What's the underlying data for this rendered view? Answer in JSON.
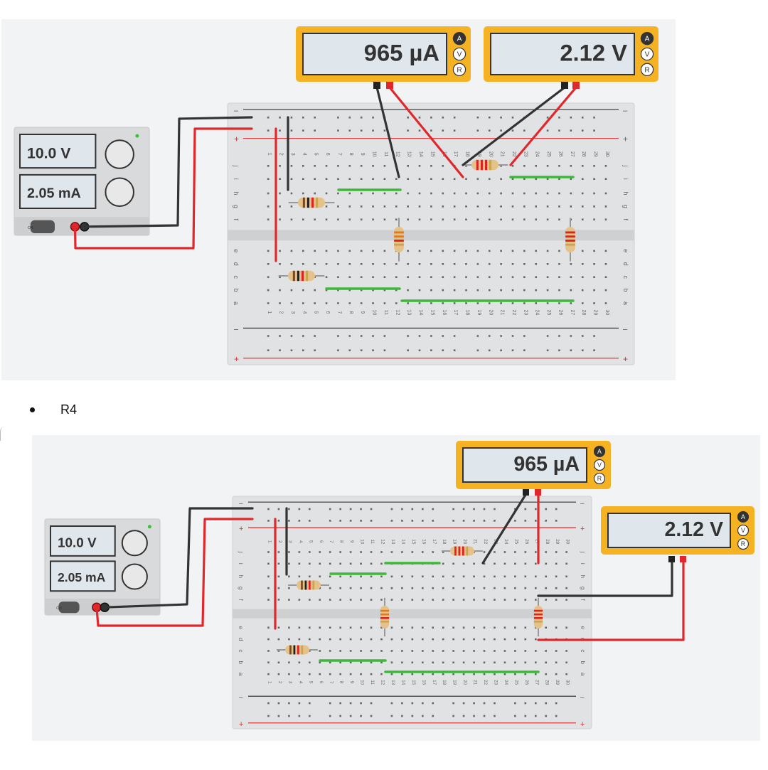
{
  "colors": {
    "meter_frame": "#f5b323",
    "meter_screen": "#dfe6ec",
    "supply_body": "#d9dadb",
    "breadboard": "#e1e2e3",
    "wire_red": "#e0282c",
    "wire_black": "#333333",
    "jumper_green": "#3db83a"
  },
  "figure1": {
    "ammeter": {
      "reading": "965 µA",
      "modes": [
        "A",
        "V",
        "R"
      ]
    },
    "voltmeter": {
      "reading": "2.12 V",
      "modes": [
        "A",
        "V",
        "R"
      ]
    },
    "supply": {
      "voltage": "10.0 V",
      "current": "2.05 mA",
      "switch_label": "ON"
    }
  },
  "bullet": {
    "text": "R4"
  },
  "figure2": {
    "ammeter": {
      "reading": "965 µA",
      "modes": [
        "A",
        "V",
        "R"
      ]
    },
    "voltmeter": {
      "reading": "2.12 V",
      "modes": [
        "A",
        "V",
        "R"
      ]
    },
    "supply": {
      "voltage": "10.0 V",
      "current": "2.05 mA",
      "switch_label": "ON"
    }
  },
  "breadboard": {
    "rail_minus": "–",
    "rail_plus": "+",
    "row_letters_top": [
      "j",
      "i",
      "h",
      "g",
      "f"
    ],
    "row_letters_bottom": [
      "e",
      "d",
      "c",
      "b",
      "a"
    ],
    "column_numbers": [
      "1",
      "2",
      "3",
      "4",
      "5",
      "6",
      "7",
      "8",
      "9",
      "10",
      "11",
      "12",
      "13",
      "14",
      "15",
      "16",
      "17",
      "18",
      "19",
      "20",
      "21",
      "22",
      "23",
      "24",
      "25",
      "26",
      "27",
      "28",
      "29",
      "30"
    ]
  }
}
